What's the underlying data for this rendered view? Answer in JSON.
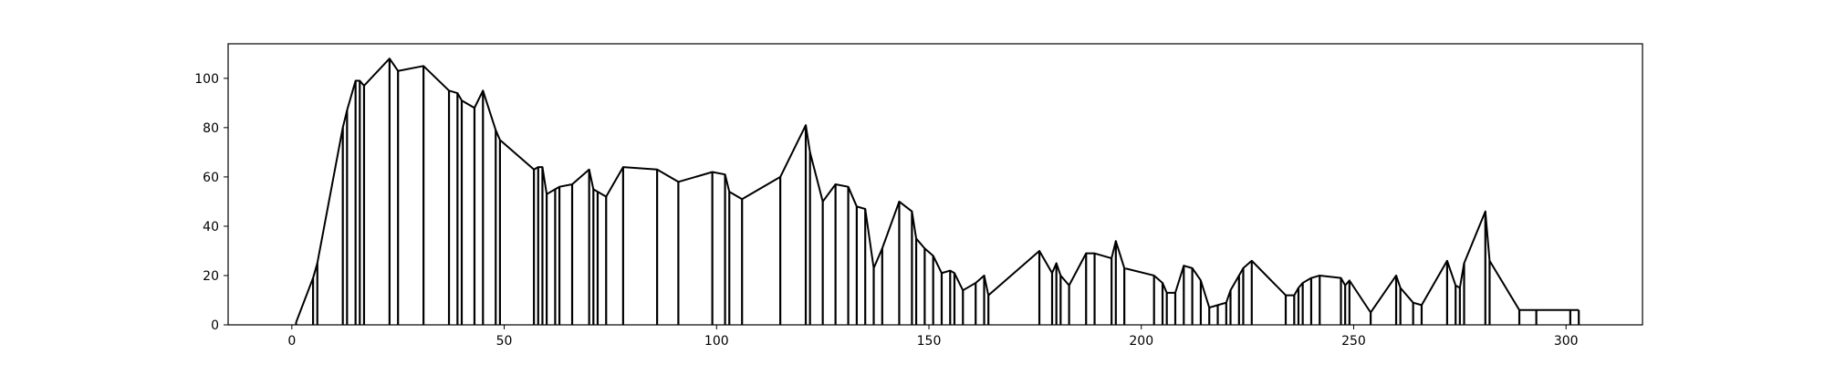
{
  "chart_data": {
    "type": "line",
    "title": "",
    "xlabel": "",
    "ylabel": "",
    "xlim": [
      -15,
      318
    ],
    "ylim": [
      0,
      114
    ],
    "x_ticks": [
      0,
      50,
      100,
      150,
      200,
      250,
      300
    ],
    "y_ticks": [
      0,
      20,
      40,
      60,
      80,
      100
    ],
    "grid": false,
    "legend": "none",
    "colors": {
      "line": "#000000",
      "axes": "#000000",
      "background": "#ffffff"
    },
    "series": [
      {
        "x": [
          1,
          5,
          6,
          12,
          13,
          15,
          16,
          17,
          23,
          25,
          31,
          37,
          39,
          40,
          43,
          45,
          48,
          49,
          57,
          58,
          59,
          60,
          62,
          63,
          66,
          70,
          71,
          72,
          74,
          78,
          86,
          91,
          99,
          102,
          103,
          106,
          115,
          121,
          122,
          125,
          128,
          131,
          133,
          135,
          137,
          139,
          143,
          146,
          147,
          149,
          151,
          153,
          155,
          156,
          158,
          161,
          163,
          164,
          176,
          179,
          180,
          181,
          183,
          187,
          189,
          193,
          194,
          196,
          203,
          205,
          206,
          208,
          210,
          212,
          214,
          216,
          218,
          220,
          221,
          223,
          224,
          226,
          234,
          236,
          237,
          238,
          240,
          242,
          247,
          248,
          249,
          254,
          260,
          261,
          264,
          266,
          272,
          274,
          275,
          276,
          281,
          282,
          289,
          293,
          301,
          303
        ],
        "y": [
          1,
          19,
          25,
          80,
          87,
          99,
          99,
          97,
          108,
          103,
          105,
          95,
          94,
          91,
          88,
          95,
          79,
          75,
          63,
          64,
          64,
          53,
          55,
          56,
          57,
          63,
          55,
          54,
          52,
          64,
          63,
          58,
          62,
          61,
          54,
          51,
          60,
          81,
          70,
          50,
          57,
          56,
          48,
          47,
          23,
          31,
          50,
          46,
          35,
          31,
          28,
          21,
          22,
          21,
          14,
          17,
          20,
          12,
          30,
          21,
          25,
          20,
          16,
          29,
          29,
          27,
          34,
          23,
          20,
          17,
          13,
          13,
          24,
          23,
          18,
          7,
          8,
          9,
          14,
          20,
          23,
          26,
          12,
          12,
          15,
          17,
          19,
          20,
          19,
          16,
          18,
          5,
          20,
          15,
          9,
          8,
          26,
          16,
          15,
          25,
          46,
          26,
          6,
          6,
          6,
          6
        ]
      }
    ]
  }
}
